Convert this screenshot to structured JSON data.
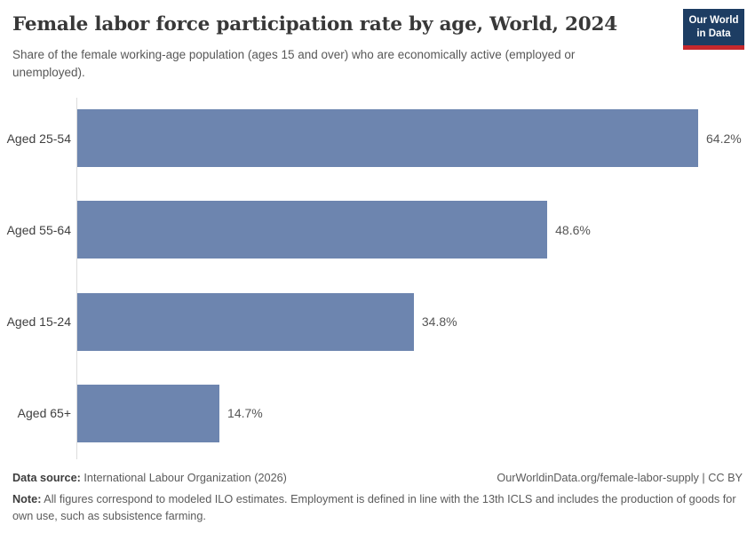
{
  "header": {
    "title": "Female labor force participation rate by age, World, 2024",
    "subtitle": "Share of the female working-age population (ages 15 and over) who are economically active (employed or unemployed).",
    "logo": {
      "line1": "Our World",
      "line2": "in Data"
    }
  },
  "chart_data": {
    "type": "bar",
    "orientation": "horizontal",
    "title": "Female labor force participation rate by age, World, 2024",
    "categories": [
      "Aged 25-54",
      "Aged 55-64",
      "Aged 15-24",
      "Aged 65+"
    ],
    "values": [
      64.2,
      48.6,
      34.8,
      14.7
    ],
    "value_labels": [
      "64.2%",
      "48.6%",
      "34.8%",
      "14.7%"
    ],
    "unit": "%",
    "xlabel": "",
    "ylabel": "",
    "xlim": [
      0,
      70
    ],
    "grid": false,
    "legend": "none",
    "bar_color": "#6d85af",
    "sorted": "descending"
  },
  "footer": {
    "source_label": "Data source:",
    "source_text": " International Labour Organization (2026)",
    "link_text": "OurWorldinData.org/female-labor-supply | CC BY",
    "note_label": "Note:",
    "note_text": " All figures correspond to modeled ILO estimates. Employment is defined in line with the 13th ICLS and includes the production of goods for own use, such as subsistence farming."
  },
  "colors": {
    "bar": "#6d85af",
    "logo_navy": "#1d3d63",
    "logo_red": "#c6282d",
    "axis_line": "#dcdcdc",
    "title_text": "#383838",
    "body_text": "#575757"
  }
}
